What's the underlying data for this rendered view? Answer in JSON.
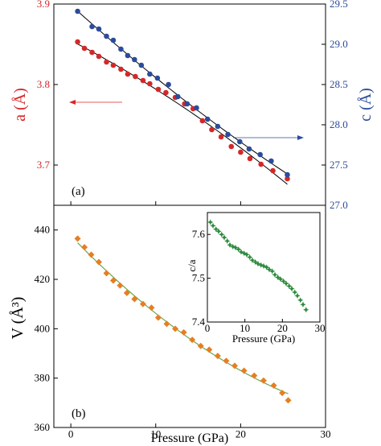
{
  "chart_data": [
    {
      "type": "scatter",
      "panel_label": "(a)",
      "xlabel": "",
      "ylabel_left": "a (Å)",
      "ylabel_right": "c (Å)",
      "xlim": [
        -2,
        30
      ],
      "ylim_left": [
        3.65,
        3.9
      ],
      "ylim_right": [
        27.0,
        29.5
      ],
      "left_ticks": [
        "3.7",
        "3.8",
        "3.9"
      ],
      "right_ticks": [
        "27.0",
        "27.5",
        "28.0",
        "28.5",
        "29.0",
        "29.5"
      ],
      "colors": {
        "a": "#d62728",
        "c": "#2b4c9b",
        "fit": "#000000"
      },
      "series": [
        {
          "axis": "left",
          "x": [
            0.8,
            1.6,
            2.5,
            3.3,
            4.2,
            5.0,
            5.9,
            6.7,
            7.6,
            8.5,
            9.3,
            10.3,
            11.2,
            12.3,
            13.4,
            14.4,
            15.5,
            16.6,
            17.7,
            18.9,
            20.0,
            21.1,
            22.4,
            23.8,
            25.5
          ],
          "y": [
            3.853,
            3.845,
            3.84,
            3.835,
            3.828,
            3.824,
            3.819,
            3.813,
            3.81,
            3.805,
            3.801,
            3.794,
            3.79,
            3.784,
            3.776,
            3.77,
            3.755,
            3.744,
            3.735,
            3.723,
            3.716,
            3.708,
            3.701,
            3.693,
            3.683
          ]
        },
        {
          "axis": "right",
          "x": [
            0.8,
            2.5,
            3.3,
            4.2,
            5.0,
            5.9,
            6.7,
            7.5,
            8.3,
            9.3,
            10.2,
            11.5,
            12.6,
            13.7,
            14.8,
            16.1,
            17.3,
            18.5,
            19.9,
            21.0,
            22.3,
            23.6,
            25.5
          ],
          "y": [
            29.41,
            29.22,
            29.19,
            29.1,
            29.05,
            28.94,
            28.86,
            28.81,
            28.74,
            28.63,
            28.58,
            28.5,
            28.35,
            28.26,
            28.21,
            28.07,
            27.98,
            27.88,
            27.79,
            27.7,
            27.63,
            27.55,
            27.38
          ]
        }
      ],
      "annotations": [
        "arrow-left-to-a-axis",
        "arrow-right-to-c-axis"
      ]
    },
    {
      "type": "scatter",
      "panel_label": "(b)",
      "xlabel": "Pressure (GPa)",
      "ylabel": "V (Å³)",
      "xlim": [
        -2,
        30
      ],
      "ylim": [
        360,
        450
      ],
      "x_ticks": [
        "0",
        "10",
        "20",
        "30"
      ],
      "y_ticks": [
        "360",
        "380",
        "400",
        "420",
        "440"
      ],
      "colors": {
        "points": "#e67e22",
        "fit": "#6aa84f"
      },
      "x": [
        0.8,
        1.6,
        2.4,
        3.3,
        4.2,
        5.0,
        5.8,
        6.6,
        7.5,
        8.5,
        9.5,
        10.3,
        11.3,
        12.3,
        13.3,
        14.3,
        15.3,
        16.3,
        17.3,
        18.3,
        19.3,
        20.4,
        21.6,
        22.7,
        23.9,
        24.9,
        25.6
      ],
      "y": [
        436.5,
        433.0,
        430.0,
        427.0,
        422.5,
        419.5,
        417.5,
        414.5,
        412.0,
        410.0,
        408.5,
        404.5,
        402.0,
        400.0,
        398.5,
        395.5,
        393.0,
        391.5,
        389.0,
        387.0,
        385.0,
        383.0,
        381.0,
        379.0,
        377.0,
        374.0,
        371.0
      ]
    },
    {
      "type": "scatter",
      "role": "inset",
      "xlabel": "Pressure (GPa)",
      "ylabel": "c/a",
      "xlim": [
        0,
        30
      ],
      "ylim": [
        7.4,
        7.65
      ],
      "x_ticks": [
        "0",
        "10",
        "20",
        "30"
      ],
      "y_ticks": [
        "7.4",
        "7.5",
        "7.6"
      ],
      "colors": {
        "points": "#2e8b3e"
      },
      "x": [
        0.8,
        1.5,
        2.3,
        3.0,
        3.8,
        4.5,
        5.3,
        6.0,
        6.8,
        7.5,
        8.3,
        9.0,
        9.8,
        10.5,
        11.3,
        12.0,
        12.8,
        13.5,
        14.3,
        15.0,
        15.8,
        16.5,
        17.3,
        18.0,
        18.8,
        19.5,
        20.3,
        21.0,
        21.8,
        22.5,
        23.3,
        24.0,
        24.8,
        25.5,
        26.3
      ],
      "y": [
        7.628,
        7.62,
        7.612,
        7.607,
        7.6,
        7.593,
        7.585,
        7.576,
        7.572,
        7.57,
        7.566,
        7.56,
        7.557,
        7.554,
        7.548,
        7.541,
        7.537,
        7.533,
        7.53,
        7.528,
        7.525,
        7.52,
        7.516,
        7.508,
        7.502,
        7.498,
        7.493,
        7.488,
        7.482,
        7.476,
        7.468,
        7.46,
        7.45,
        7.44,
        7.428
      ]
    }
  ]
}
